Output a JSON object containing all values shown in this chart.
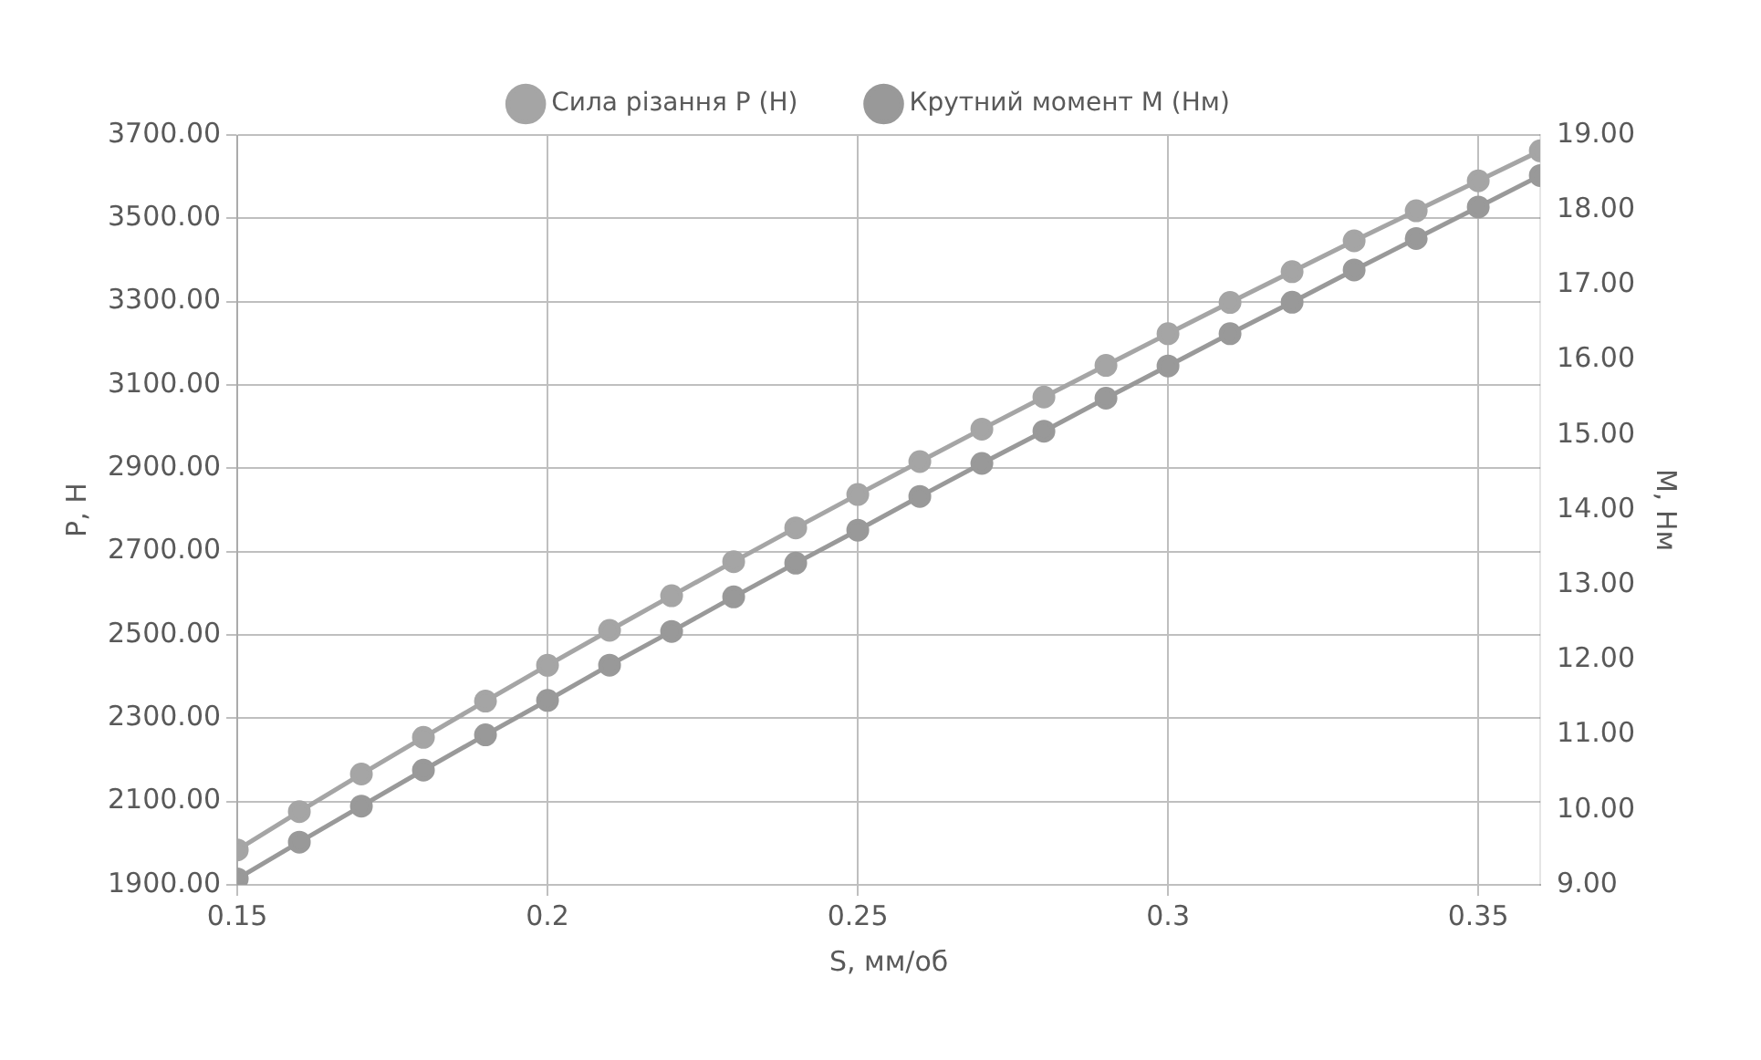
{
  "chart_data": {
    "type": "line",
    "xlabel": "S, мм/об",
    "ylabel": "P, Н",
    "y2label": "M, Нм",
    "x": [
      0.15,
      0.16,
      0.17,
      0.18,
      0.19,
      0.2,
      0.21,
      0.22,
      0.23,
      0.24,
      0.25,
      0.26,
      0.27,
      0.28,
      0.29,
      0.3,
      0.31,
      0.32,
      0.33,
      0.34,
      0.35,
      0.36
    ],
    "series": [
      {
        "name": "Сила різання P (Н)",
        "color": "#a5a5a5",
        "values": [
          1984,
          2076,
          2166,
          2254,
          2341,
          2427,
          2511,
          2594,
          2676,
          2757,
          2837,
          2916,
          2994,
          3071,
          3147,
          3223,
          3298,
          3372,
          3446,
          3518,
          3590,
          3662
        ]
      },
      {
        "name": "Крутний момент M (Нм)",
        "color": "#999999",
        "axis": "y2",
        "values": [
          9.08,
          9.57,
          10.05,
          10.53,
          11.0,
          11.46,
          11.93,
          12.38,
          12.84,
          13.29,
          13.73,
          14.18,
          14.62,
          15.05,
          15.49,
          15.92,
          16.35,
          16.77,
          17.2,
          17.62,
          18.04,
          18.46
        ]
      }
    ],
    "xlim": [
      0.15,
      0.36
    ],
    "xticks": [
      0.15,
      0.2,
      0.25,
      0.3,
      0.35
    ],
    "ylim": [
      1900,
      3700
    ],
    "yticks": [
      {
        "value": 1900,
        "label": "1900.00"
      },
      {
        "value": 2100,
        "label": "2100.00"
      },
      {
        "value": 2300,
        "label": "2300.00"
      },
      {
        "value": 2500,
        "label": "2500.00"
      },
      {
        "value": 2700,
        "label": "2700.00"
      },
      {
        "value": 2900,
        "label": "2900.00"
      },
      {
        "value": 3100,
        "label": "3100.00"
      },
      {
        "value": 3300,
        "label": "3300.00"
      },
      {
        "value": 3500,
        "label": "3500.00"
      },
      {
        "value": 3700,
        "label": "3700.00"
      }
    ],
    "y2lim": [
      9,
      19
    ],
    "y2ticks": [
      {
        "value": 9,
        "label": "9.00"
      },
      {
        "value": 10,
        "label": "10.00"
      },
      {
        "value": 11,
        "label": "11.00"
      },
      {
        "value": 12,
        "label": "12.00"
      },
      {
        "value": 13,
        "label": "13.00"
      },
      {
        "value": 14,
        "label": "14.00"
      },
      {
        "value": 15,
        "label": "15.00"
      },
      {
        "value": 16,
        "label": "16.00"
      },
      {
        "value": 17,
        "label": "17.00"
      },
      {
        "value": 18,
        "label": "18.00"
      },
      {
        "value": 19,
        "label": "19.00"
      }
    ],
    "grid": true,
    "legend": "top",
    "marker": "circle",
    "line_style": "solid"
  }
}
